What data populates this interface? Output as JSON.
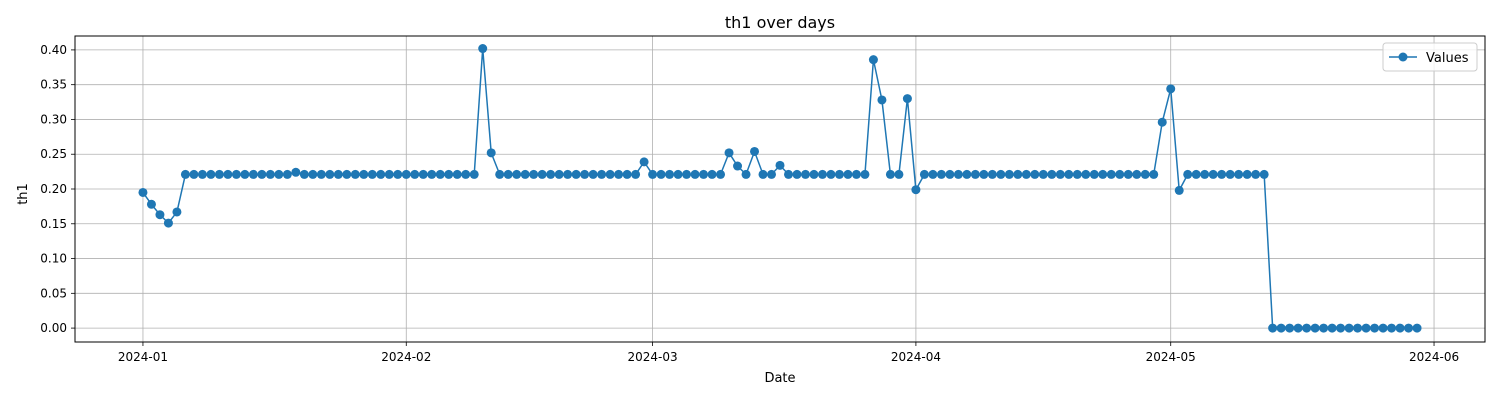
{
  "chart_data": {
    "type": "line",
    "title": "th1 over days",
    "xlabel": "Date",
    "ylabel": "th1",
    "grid": true,
    "legend_position": "top-right",
    "series_color": "#1f77b4",
    "xlim": [
      "2023-12-24",
      "2024-06-07"
    ],
    "ylim": [
      -0.02,
      0.42
    ],
    "x_ticks": [
      "2024-01-01",
      "2024-02-01",
      "2024-03-01",
      "2024-04-01",
      "2024-05-01",
      "2024-06-01"
    ],
    "x_tick_labels": [
      "2024-01",
      "2024-02",
      "2024-03",
      "2024-04",
      "2024-05",
      "2024-06"
    ],
    "y_ticks": [
      0.0,
      0.05,
      0.1,
      0.15,
      0.2,
      0.25,
      0.3,
      0.35,
      0.4
    ],
    "y_tick_labels": [
      "0.00",
      "0.05",
      "0.10",
      "0.15",
      "0.20",
      "0.25",
      "0.30",
      "0.35",
      "0.40"
    ],
    "x": [
      "2024-01-01",
      "2024-01-02",
      "2024-01-03",
      "2024-01-04",
      "2024-01-05",
      "2024-01-06",
      "2024-01-07",
      "2024-01-08",
      "2024-01-09",
      "2024-01-10",
      "2024-01-11",
      "2024-01-12",
      "2024-01-13",
      "2024-01-14",
      "2024-01-15",
      "2024-01-16",
      "2024-01-17",
      "2024-01-18",
      "2024-01-19",
      "2024-01-20",
      "2024-01-21",
      "2024-01-22",
      "2024-01-23",
      "2024-01-24",
      "2024-01-25",
      "2024-01-26",
      "2024-01-27",
      "2024-01-28",
      "2024-01-29",
      "2024-01-30",
      "2024-01-31",
      "2024-02-01",
      "2024-02-02",
      "2024-02-03",
      "2024-02-04",
      "2024-02-05",
      "2024-02-06",
      "2024-02-07",
      "2024-02-08",
      "2024-02-09",
      "2024-02-10",
      "2024-02-11",
      "2024-02-12",
      "2024-02-13",
      "2024-02-14",
      "2024-02-15",
      "2024-02-16",
      "2024-02-17",
      "2024-02-18",
      "2024-02-19",
      "2024-02-20",
      "2024-02-21",
      "2024-02-22",
      "2024-02-23",
      "2024-02-24",
      "2024-02-25",
      "2024-02-26",
      "2024-02-27",
      "2024-02-28",
      "2024-02-29",
      "2024-03-01",
      "2024-03-02",
      "2024-03-03",
      "2024-03-04",
      "2024-03-05",
      "2024-03-06",
      "2024-03-07",
      "2024-03-08",
      "2024-03-09",
      "2024-03-10",
      "2024-03-11",
      "2024-03-12",
      "2024-03-13",
      "2024-03-14",
      "2024-03-15",
      "2024-03-16",
      "2024-03-17",
      "2024-03-18",
      "2024-03-19",
      "2024-03-20",
      "2024-03-21",
      "2024-03-22",
      "2024-03-23",
      "2024-03-24",
      "2024-03-25",
      "2024-03-26",
      "2024-03-27",
      "2024-03-28",
      "2024-03-29",
      "2024-03-30",
      "2024-03-31",
      "2024-04-01",
      "2024-04-02",
      "2024-04-03",
      "2024-04-04",
      "2024-04-05",
      "2024-04-06",
      "2024-04-07",
      "2024-04-08",
      "2024-04-09",
      "2024-04-10",
      "2024-04-11",
      "2024-04-12",
      "2024-04-13",
      "2024-04-14",
      "2024-04-15",
      "2024-04-16",
      "2024-04-17",
      "2024-04-18",
      "2024-04-19",
      "2024-04-20",
      "2024-04-21",
      "2024-04-22",
      "2024-04-23",
      "2024-04-24",
      "2024-04-25",
      "2024-04-26",
      "2024-04-27",
      "2024-04-28",
      "2024-04-29",
      "2024-04-30",
      "2024-05-01",
      "2024-05-02",
      "2024-05-03",
      "2024-05-04",
      "2024-05-05",
      "2024-05-06",
      "2024-05-07",
      "2024-05-08",
      "2024-05-09",
      "2024-05-10",
      "2024-05-11",
      "2024-05-12",
      "2024-05-13",
      "2024-05-14",
      "2024-05-15",
      "2024-05-16",
      "2024-05-17",
      "2024-05-18",
      "2024-05-19",
      "2024-05-20",
      "2024-05-21",
      "2024-05-22",
      "2024-05-23",
      "2024-05-24",
      "2024-05-25",
      "2024-05-26",
      "2024-05-27",
      "2024-05-28",
      "2024-05-29",
      "2024-05-30"
    ],
    "series": [
      {
        "name": "Values",
        "values": [
          0.195,
          0.178,
          0.163,
          0.151,
          0.167,
          0.221,
          0.221,
          0.221,
          0.221,
          0.221,
          0.221,
          0.221,
          0.221,
          0.221,
          0.221,
          0.221,
          0.221,
          0.221,
          0.224,
          0.221,
          0.221,
          0.221,
          0.221,
          0.221,
          0.221,
          0.221,
          0.221,
          0.221,
          0.221,
          0.221,
          0.221,
          0.221,
          0.221,
          0.221,
          0.221,
          0.221,
          0.221,
          0.221,
          0.221,
          0.221,
          0.402,
          0.252,
          0.221,
          0.221,
          0.221,
          0.221,
          0.221,
          0.221,
          0.221,
          0.221,
          0.221,
          0.221,
          0.221,
          0.221,
          0.221,
          0.221,
          0.221,
          0.221,
          0.221,
          0.239,
          0.221,
          0.221,
          0.221,
          0.221,
          0.221,
          0.221,
          0.221,
          0.221,
          0.221,
          0.252,
          0.233,
          0.221,
          0.254,
          0.221,
          0.221,
          0.234,
          0.221,
          0.221,
          0.221,
          0.221,
          0.221,
          0.221,
          0.221,
          0.221,
          0.221,
          0.221,
          0.386,
          0.328,
          0.221,
          0.221,
          0.33,
          0.199,
          0.221,
          0.221,
          0.221,
          0.221,
          0.221,
          0.221,
          0.221,
          0.221,
          0.221,
          0.221,
          0.221,
          0.221,
          0.221,
          0.221,
          0.221,
          0.221,
          0.221,
          0.221,
          0.221,
          0.221,
          0.221,
          0.221,
          0.221,
          0.221,
          0.221,
          0.221,
          0.221,
          0.221,
          0.296,
          0.344,
          0.198,
          0.221,
          0.221,
          0.221,
          0.221,
          0.221,
          0.221,
          0.221,
          0.221,
          0.221,
          0.221,
          0.0,
          0.0,
          0.0,
          0.0,
          0.0,
          0.0,
          0.0,
          0.0,
          0.0,
          0.0,
          0.0,
          0.0,
          0.0,
          0.0,
          0.0,
          0.0,
          0.0,
          0.0
        ]
      }
    ]
  }
}
